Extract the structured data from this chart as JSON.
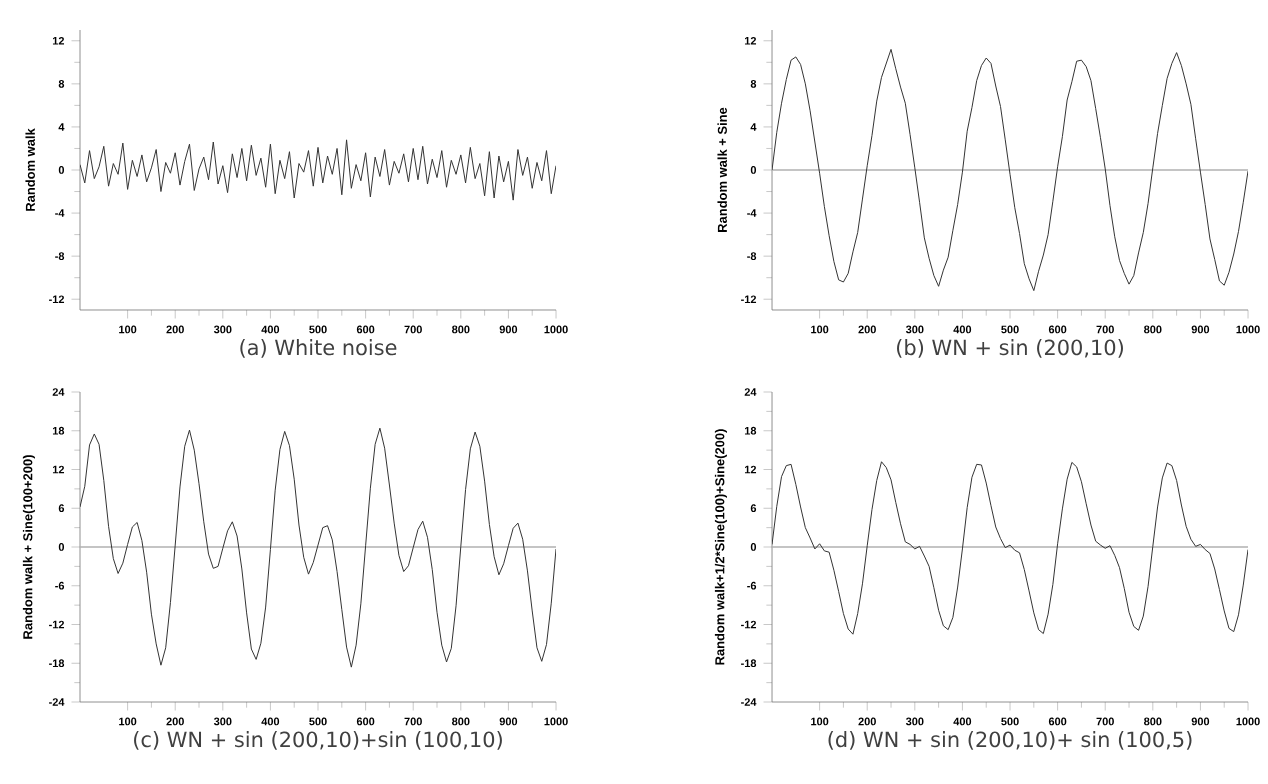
{
  "chart_data": [
    {
      "type": "line",
      "title": "(a) White noise",
      "ylabel": "Random walk",
      "xlim": [
        0,
        1000
      ],
      "ylim": [
        -13,
        13
      ],
      "xticks": [
        100,
        200,
        300,
        400,
        500,
        600,
        700,
        800,
        900,
        1000
      ],
      "yticks": [
        -12,
        -8,
        -4,
        0,
        4,
        8,
        12
      ],
      "grid": false,
      "x": [
        0,
        10,
        20,
        30,
        40,
        50,
        60,
        70,
        80,
        90,
        100,
        110,
        120,
        130,
        140,
        150,
        160,
        170,
        180,
        190,
        200,
        210,
        220,
        230,
        240,
        250,
        260,
        270,
        280,
        290,
        300,
        310,
        320,
        330,
        340,
        350,
        360,
        370,
        380,
        390,
        400,
        410,
        420,
        430,
        440,
        450,
        460,
        470,
        480,
        490,
        500,
        510,
        520,
        530,
        540,
        550,
        560,
        570,
        580,
        590,
        600,
        610,
        620,
        630,
        640,
        650,
        660,
        670,
        680,
        690,
        700,
        710,
        720,
        730,
        740,
        750,
        760,
        770,
        780,
        790,
        800,
        810,
        820,
        830,
        840,
        850,
        860,
        870,
        880,
        890,
        900,
        910,
        920,
        930,
        940,
        950,
        960,
        970,
        980,
        990,
        1000
      ],
      "series": [
        {
          "color": "#333333",
          "values": [
            0.5,
            -1.2,
            1.8,
            -0.8,
            0.3,
            2.2,
            -1.5,
            0.6,
            -0.4,
            2.5,
            -1.8,
            0.9,
            -0.6,
            1.4,
            -1.1,
            0.2,
            1.9,
            -2.0,
            0.7,
            -0.3,
            1.6,
            -1.4,
            0.8,
            2.4,
            -1.9,
            0.1,
            1.2,
            -0.9,
            2.6,
            -1.3,
            0.4,
            -2.1,
            1.5,
            -0.7,
            2.0,
            -1.0,
            2.3,
            -0.5,
            1.1,
            -1.6,
            2.4,
            -2.2,
            0.9,
            -0.8,
            1.7,
            -2.6,
            0.6,
            -0.2,
            1.8,
            -1.5,
            2.1,
            -1.2,
            1.3,
            -0.4,
            2.0,
            -2.3,
            2.8,
            -1.7,
            0.5,
            -1.0,
            1.6,
            -2.5,
            1.2,
            -0.6,
            1.9,
            -1.4,
            0.8,
            -0.3,
            1.5,
            -1.1,
            2.0,
            -0.9,
            2.2,
            -1.3,
            1.0,
            -0.7,
            1.8,
            -1.6,
            0.9,
            -0.4,
            1.4,
            -1.2,
            2.1,
            -0.8,
            0.6,
            -2.4,
            1.7,
            -2.6,
            1.3,
            -1.1,
            0.8,
            -2.8,
            1.9,
            -0.5,
            1.2,
            -1.7,
            0.7,
            -1.0,
            1.8,
            -2.2,
            0.4
          ]
        }
      ]
    },
    {
      "type": "line",
      "title": "(b) WN + sin (200,10)",
      "ylabel": "Random walk + Sine",
      "xlim": [
        0,
        1000
      ],
      "ylim": [
        -13,
        13
      ],
      "xticks": [
        100,
        200,
        300,
        400,
        500,
        600,
        700,
        800,
        900,
        1000
      ],
      "yticks": [
        -12,
        -8,
        -4,
        0,
        4,
        8,
        12
      ],
      "grid": false,
      "ref_lines": [
        {
          "axis": "y",
          "value": 0,
          "color": "#b0b0b0"
        }
      ],
      "x": [
        0,
        10,
        20,
        30,
        40,
        50,
        60,
        70,
        80,
        90,
        100,
        110,
        120,
        130,
        140,
        150,
        160,
        170,
        180,
        190,
        200,
        210,
        220,
        230,
        240,
        250,
        260,
        270,
        280,
        290,
        300,
        310,
        320,
        330,
        340,
        350,
        360,
        370,
        380,
        390,
        400,
        410,
        420,
        430,
        440,
        450,
        460,
        470,
        480,
        490,
        500,
        510,
        520,
        530,
        540,
        550,
        560,
        570,
        580,
        590,
        600,
        610,
        620,
        630,
        640,
        650,
        660,
        670,
        680,
        690,
        700,
        710,
        720,
        730,
        740,
        750,
        760,
        770,
        780,
        790,
        800,
        810,
        820,
        830,
        840,
        850,
        860,
        870,
        880,
        890,
        900,
        910,
        920,
        930,
        940,
        950,
        960,
        970,
        980,
        990,
        1000
      ],
      "series": [
        {
          "color": "#333333",
          "values": [
            0,
            3.5,
            6.2,
            8.4,
            10.2,
            10.5,
            9.8,
            8.0,
            5.5,
            2.6,
            -0.3,
            -3.4,
            -6.1,
            -8.5,
            -10.2,
            -10.4,
            -9.6,
            -7.6,
            -5.8,
            -2.7,
            0.4,
            3.2,
            6.4,
            8.6,
            9.9,
            11.2,
            9.4,
            7.7,
            6.2,
            3.3,
            0.2,
            -3.0,
            -6.3,
            -8.2,
            -9.8,
            -10.8,
            -9.3,
            -8.1,
            -5.6,
            -3.2,
            -0.2,
            3.6,
            5.8,
            8.3,
            9.7,
            10.4,
            9.9,
            7.8,
            5.9,
            2.8,
            -0.4,
            -3.5,
            -5.9,
            -8.7,
            -10.1,
            -11.2,
            -9.4,
            -7.9,
            -6.0,
            -2.9,
            0.3,
            3.1,
            6.5,
            8.2,
            10.1,
            10.2,
            9.6,
            8.3,
            5.7,
            3.0,
            0.1,
            -3.3,
            -6.2,
            -8.4,
            -9.6,
            -10.6,
            -9.8,
            -7.7,
            -5.8,
            -3.1,
            0.2,
            3.4,
            6.0,
            8.5,
            9.9,
            10.9,
            9.7,
            8.0,
            6.1,
            2.9,
            -0.2,
            -3.2,
            -6.4,
            -8.3,
            -10.3,
            -10.7,
            -9.5,
            -7.8,
            -5.7,
            -3.0,
            -0.1
          ]
        }
      ]
    },
    {
      "type": "line",
      "title": "(c) WN + sin (200,10)+sin (100,10)",
      "ylabel": "Random walk + Sine(100+200)",
      "xlim": [
        0,
        1000
      ],
      "ylim": [
        -24,
        24
      ],
      "xticks": [
        100,
        200,
        300,
        400,
        500,
        600,
        700,
        800,
        900,
        1000
      ],
      "yticks": [
        -24,
        -18,
        -12,
        -6,
        0,
        6,
        12,
        18,
        24
      ],
      "grid": false,
      "ref_lines": [
        {
          "axis": "y",
          "value": 0,
          "color": "#b0b0b0"
        }
      ],
      "x": [
        0,
        10,
        20,
        30,
        40,
        50,
        60,
        70,
        80,
        90,
        100,
        110,
        120,
        130,
        140,
        150,
        160,
        170,
        180,
        190,
        200,
        210,
        220,
        230,
        240,
        250,
        260,
        270,
        280,
        290,
        300,
        310,
        320,
        330,
        340,
        350,
        360,
        370,
        380,
        390,
        400,
        410,
        420,
        430,
        440,
        450,
        460,
        470,
        480,
        490,
        500,
        510,
        520,
        530,
        540,
        550,
        560,
        570,
        580,
        590,
        600,
        610,
        620,
        630,
        640,
        650,
        660,
        670,
        680,
        690,
        700,
        710,
        720,
        730,
        740,
        750,
        760,
        770,
        780,
        790,
        800,
        810,
        820,
        830,
        840,
        850,
        860,
        870,
        880,
        890,
        900,
        910,
        920,
        930,
        940,
        950,
        960,
        970,
        980,
        990,
        1000
      ],
      "series": [
        {
          "color": "#333333",
          "values": [
            6.2,
            9.4,
            15.8,
            17.5,
            15.9,
            10.3,
            3.2,
            -1.8,
            -4.1,
            -2.5,
            0.4,
            3.1,
            3.8,
            1.0,
            -3.9,
            -10.4,
            -15.0,
            -18.3,
            -15.6,
            -8.6,
            0.3,
            9.3,
            15.6,
            18.1,
            15.0,
            9.8,
            3.9,
            -1.1,
            -3.3,
            -3.0,
            -0.2,
            2.5,
            3.9,
            1.7,
            -3.4,
            -10.2,
            -15.8,
            -17.4,
            -14.9,
            -9.3,
            -0.4,
            8.8,
            15.1,
            17.9,
            15.7,
            10.5,
            3.4,
            -1.6,
            -4.2,
            -2.4,
            0.3,
            3.0,
            3.3,
            1.1,
            -3.8,
            -9.7,
            -15.5,
            -18.6,
            -15.2,
            -8.8,
            0.2,
            9.1,
            15.9,
            18.4,
            15.3,
            9.6,
            3.7,
            -1.3,
            -3.8,
            -2.9,
            -0.1,
            2.7,
            4.0,
            1.5,
            -3.5,
            -10.1,
            -15.2,
            -17.8,
            -15.7,
            -9.1,
            0.1,
            8.9,
            15.2,
            17.8,
            15.6,
            10.2,
            3.5,
            -1.5,
            -4.3,
            -2.6,
            0.2,
            2.9,
            3.7,
            1.2,
            -3.7,
            -9.9,
            -15.6,
            -17.7,
            -15.1,
            -8.7,
            -0.3
          ]
        }
      ]
    },
    {
      "type": "line",
      "title": "(d) WN + sin (200,10)+ sin (100,5)",
      "ylabel": "Random walk+1/2*Sine(100)+Sine(200)",
      "xlim": [
        0,
        1000
      ],
      "ylim": [
        -24,
        24
      ],
      "xticks": [
        100,
        200,
        300,
        400,
        500,
        600,
        700,
        800,
        900,
        1000
      ],
      "yticks": [
        -24,
        -18,
        -12,
        -6,
        0,
        6,
        12,
        18,
        24
      ],
      "grid": false,
      "ref_lines": [
        {
          "axis": "y",
          "value": 0,
          "color": "#b0b0b0"
        }
      ],
      "x": [
        0,
        10,
        20,
        30,
        40,
        50,
        60,
        70,
        80,
        90,
        100,
        110,
        120,
        130,
        140,
        150,
        160,
        170,
        180,
        190,
        200,
        210,
        220,
        230,
        240,
        250,
        260,
        270,
        280,
        290,
        300,
        310,
        320,
        330,
        340,
        350,
        360,
        370,
        380,
        390,
        400,
        410,
        420,
        430,
        440,
        450,
        460,
        470,
        480,
        490,
        500,
        510,
        520,
        530,
        540,
        550,
        560,
        570,
        580,
        590,
        600,
        610,
        620,
        630,
        640,
        650,
        660,
        670,
        680,
        690,
        700,
        710,
        720,
        730,
        740,
        750,
        760,
        770,
        780,
        790,
        800,
        810,
        820,
        830,
        840,
        850,
        860,
        870,
        880,
        890,
        900,
        910,
        920,
        930,
        940,
        950,
        960,
        970,
        980,
        990,
        1000
      ],
      "series": [
        {
          "color": "#333333",
          "values": [
            0.4,
            6.3,
            10.9,
            12.6,
            12.8,
            9.7,
            6.2,
            3.0,
            1.4,
            -0.3,
            0.5,
            -0.6,
            -0.8,
            -3.6,
            -6.9,
            -10.3,
            -12.7,
            -13.5,
            -10.3,
            -5.7,
            0.2,
            5.8,
            10.3,
            13.2,
            12.3,
            10.4,
            6.9,
            3.6,
            0.8,
            0.4,
            -0.3,
            0.1,
            -1.4,
            -3.0,
            -6.3,
            -9.8,
            -12.2,
            -12.8,
            -10.9,
            -6.2,
            -0.3,
            6.1,
            10.8,
            12.8,
            12.7,
            9.9,
            6.4,
            3.1,
            1.3,
            -0.1,
            0.3,
            -0.5,
            -0.9,
            -3.5,
            -6.8,
            -10.2,
            -12.8,
            -13.4,
            -10.4,
            -5.8,
            0.5,
            5.9,
            10.5,
            13.1,
            12.4,
            10.1,
            6.7,
            3.4,
            0.9,
            0.3,
            -0.2,
            0.2,
            -1.3,
            -3.2,
            -6.4,
            -10.1,
            -12.3,
            -12.9,
            -10.7,
            -6.1,
            0.1,
            6.2,
            10.7,
            13.0,
            12.6,
            10.3,
            6.5,
            3.2,
            1.2,
            0.1,
            0.4,
            -0.4,
            -1.0,
            -3.4,
            -6.6,
            -9.9,
            -12.6,
            -13.1,
            -10.5,
            -5.9,
            -0.4
          ]
        }
      ]
    }
  ]
}
